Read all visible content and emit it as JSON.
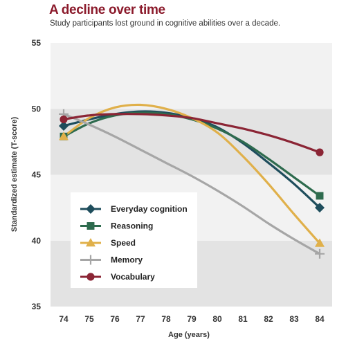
{
  "chart_data": {
    "type": "line",
    "title": "A decline over time",
    "subtitle": "Study participants lost ground in cognitive abilities over a decade.",
    "xlabel": "Age (years)",
    "ylabel": "Standardized estimate (T-score)",
    "xlim": [
      74,
      84
    ],
    "ylim": [
      35,
      55
    ],
    "xticks": [
      "74",
      "75",
      "76",
      "77",
      "78",
      "79",
      "80",
      "81",
      "82",
      "83",
      "84"
    ],
    "yticks": [
      "35",
      "40",
      "45",
      "50",
      "55"
    ],
    "grid": "alternating horizontal bands",
    "legend": "lower-left",
    "series": [
      {
        "name": "Everyday cognition",
        "color": "#1e4d5c",
        "marker": "diamond",
        "start": 48.7,
        "end": 42.5,
        "curve": [
          [
            74,
            48.7
          ],
          [
            75,
            49.2
          ],
          [
            76,
            49.6
          ],
          [
            77,
            49.8
          ],
          [
            78,
            49.7
          ],
          [
            79,
            49.3
          ],
          [
            80,
            48.6
          ],
          [
            81,
            47.4
          ],
          [
            82,
            45.9
          ],
          [
            83,
            44.3
          ],
          [
            84,
            42.5
          ]
        ]
      },
      {
        "name": "Reasoning",
        "color": "#2e6b4e",
        "marker": "square",
        "start": 47.9,
        "end": 43.4,
        "curve": [
          [
            74,
            47.9
          ],
          [
            75,
            48.9
          ],
          [
            76,
            49.5
          ],
          [
            77,
            49.7
          ],
          [
            78,
            49.6
          ],
          [
            79,
            49.2
          ],
          [
            80,
            48.5
          ],
          [
            81,
            47.5
          ],
          [
            82,
            46.2
          ],
          [
            83,
            44.8
          ],
          [
            84,
            43.4
          ]
        ]
      },
      {
        "name": "Speed",
        "color": "#e0b04a",
        "marker": "triangle",
        "start": 47.9,
        "end": 39.8,
        "curve": [
          [
            74,
            47.9
          ],
          [
            75,
            49.3
          ],
          [
            76,
            50.1
          ],
          [
            77,
            50.3
          ],
          [
            78,
            50.0
          ],
          [
            79,
            49.3
          ],
          [
            80,
            48.2
          ],
          [
            81,
            46.4
          ],
          [
            82,
            44.3
          ],
          [
            83,
            42.0
          ],
          [
            84,
            39.8
          ]
        ]
      },
      {
        "name": "Memory",
        "color": "#a6a6a6",
        "marker": "plus",
        "start": 49.6,
        "end": 39.0,
        "curve": [
          [
            74,
            49.6
          ],
          [
            75,
            48.8
          ],
          [
            76,
            47.9
          ],
          [
            77,
            46.9
          ],
          [
            78,
            45.9
          ],
          [
            79,
            44.9
          ],
          [
            80,
            43.8
          ],
          [
            81,
            42.6
          ],
          [
            82,
            41.3
          ],
          [
            83,
            40.1
          ],
          [
            84,
            39.0
          ]
        ]
      },
      {
        "name": "Vocabulary",
        "color": "#8b2535",
        "marker": "circle",
        "start": 49.2,
        "end": 46.7,
        "curve": [
          [
            74,
            49.2
          ],
          [
            75,
            49.5
          ],
          [
            76,
            49.6
          ],
          [
            77,
            49.6
          ],
          [
            78,
            49.5
          ],
          [
            79,
            49.3
          ],
          [
            80,
            48.9
          ],
          [
            81,
            48.5
          ],
          [
            82,
            48.0
          ],
          [
            83,
            47.4
          ],
          [
            84,
            46.7
          ]
        ]
      }
    ]
  }
}
